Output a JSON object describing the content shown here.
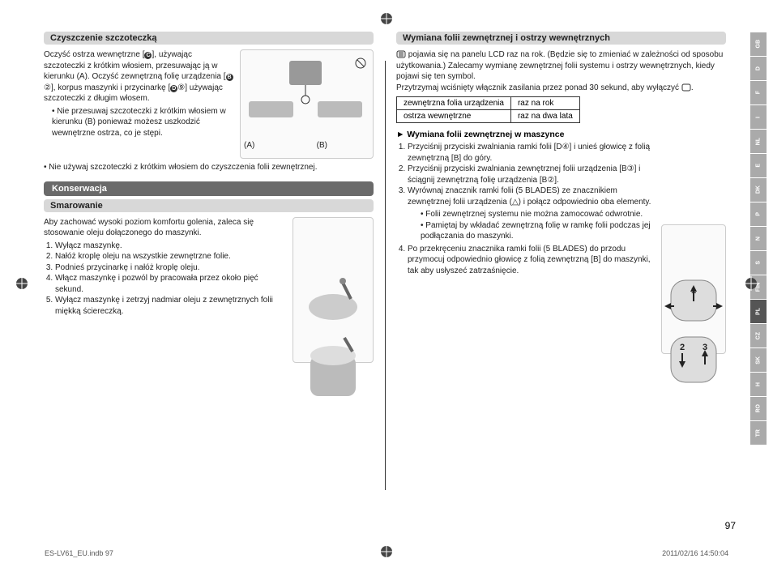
{
  "left": {
    "heading1": "Czyszczenie szczoteczką",
    "para1a": "Oczyść ostrza wewnętrzne [",
    "para1b": "], używając szczoteczki z krótkim włosiem, przesuwając ją w kierunku (A). Oczyść zewnętrzną folię urządzenia [",
    "para1c": "②], korpus maszynki i przycinarkę [",
    "para1d": "⑨] używając szczoteczki z długim włosem.",
    "bullet1": "Nie przesuwaj szczoteczki z krótkim włosiem w kierunku (B) ponieważ możesz uszkodzić wewnętrzne ostrza, co je stępi.",
    "labelA": "(A)",
    "labelB": "(B)",
    "note1": "Nie używaj szczoteczki z krótkim włosiem do czyszczenia folii zewnętrznej.",
    "headingDark": "Konserwacja",
    "heading2": "Smarowanie",
    "para2": "Aby zachować wysoki poziom komfortu golenia, zaleca się stosowanie oleju dołączonego do maszynki.",
    "oil_steps": [
      "Wyłącz maszynkę.",
      "Nałóż kroplę oleju na wszystkie zewnętrzne folie.",
      "Podnieś przycinarkę i nałóż kroplę oleju.",
      "Włącz maszynkę i pozwól by pracowała przez około pięć sekund.",
      "Wyłącz maszynkę i zetrzyj nadmiar oleju z zewnętrznych folii miękką ściereczką."
    ]
  },
  "right": {
    "heading1": "Wymiana folii zewnętrznej i ostrzy wewnętrznych",
    "para1": "pojawia się na panelu LCD raz na rok. (Będzie się to zmieniać w zależności od sposobu użytkowania.) Zalecamy wymianę zewnętrznej folii systemu i ostrzy wewnętrznych, kiedy pojawi się ten symbol.",
    "para2": "Przytrzymaj wciśnięty włącznik zasilania przez ponad 30 sekund, aby wyłączyć ",
    "table": {
      "r1c1": "zewnętrzna folia urządzenia",
      "r1c2": "raz na rok",
      "r2c1": "ostrza wewnętrzne",
      "r2c2": "raz na dwa lata"
    },
    "subhead": "Wymiana folii zewnętrznej w maszynce",
    "steps": [
      "Przyciśnij przyciski zwalniania ramki folii [D④] i unieś głowicę z folią zewnętrzną [B] do góry.",
      "Przyciśnij przyciski zwalniania zewnętrznej folii urządzenia [B③] i ściągnij zewnętrzną folię urządzenia [B②].",
      "Wyrównaj znacznik ramki folii (5 BLADES) ze znacznikiem zewnętrznej folii urządzenia (△) i połącz odpowiednio oba elementy."
    ],
    "sub_bullets": [
      "Folii zewnętrznej systemu nie można zamocować odwrotnie.",
      "Pamiętaj by wkładać zewnętrzną folię w ramkę folii podczas jej podłączania do maszynki."
    ],
    "step4": "Po przekręceniu znacznika ramki folii (5 BLADES) do przodu przymocuj odpowiednio głowicę z folią zewnętrzną [B] do maszynki, tak aby usłyszeć zatrzaśnięcie.",
    "fig_labels": {
      "n1": "1",
      "n2": "2",
      "n3": "3"
    }
  },
  "lang_tabs": [
    "GB",
    "D",
    "F",
    "I",
    "NL",
    "E",
    "DK",
    "P",
    "N",
    "S",
    "FIN",
    "PL",
    "CZ",
    "SK",
    "H",
    "RO",
    "TR"
  ],
  "active_lang": "PL",
  "page_number": "97",
  "footer_left": "ES-LV61_EU.indb   97",
  "footer_right": "2011/02/16   14:50:04"
}
